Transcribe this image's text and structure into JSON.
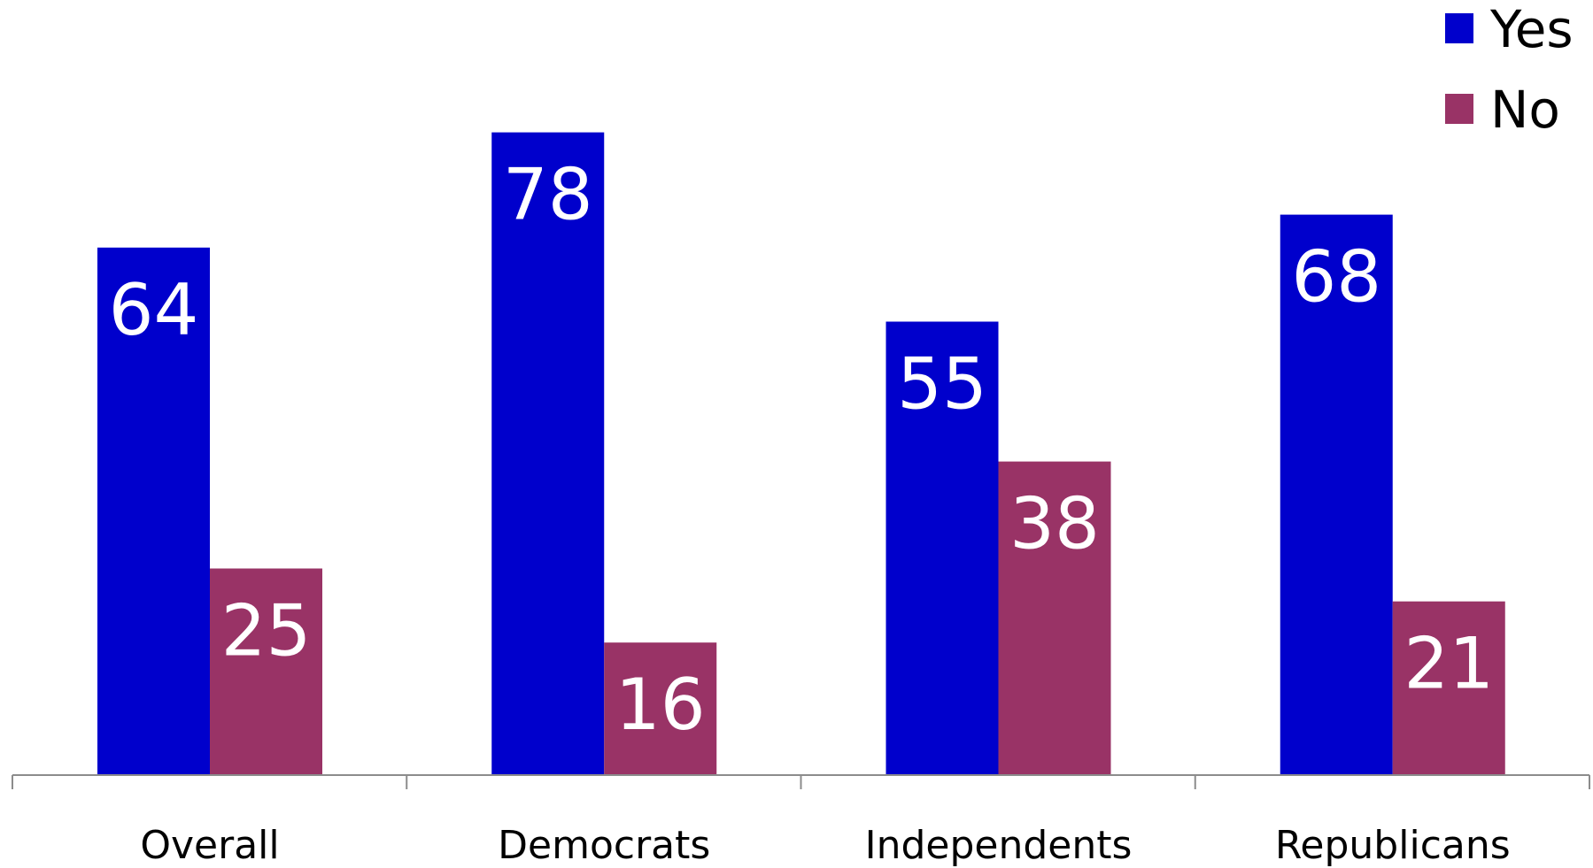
{
  "chart_data": {
    "type": "bar",
    "categories": [
      "Overall",
      "Democrats",
      "Independents",
      "Republicans"
    ],
    "series": [
      {
        "name": "Yes",
        "values": [
          64,
          78,
          55,
          68
        ],
        "color": "#0000cc"
      },
      {
        "name": "No",
        "values": [
          25,
          16,
          38,
          21
        ],
        "color": "#993366"
      }
    ],
    "ylim": [
      0,
      90
    ],
    "grid": false,
    "legend_position": "top-right",
    "data_labels": true
  }
}
